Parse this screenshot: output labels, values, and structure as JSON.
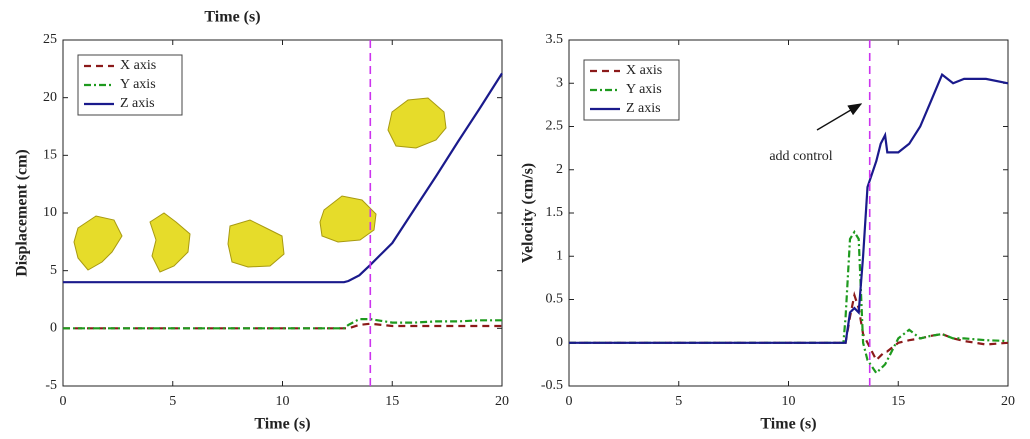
{
  "chart_data": [
    {
      "type": "line",
      "title": "Time (s)",
      "xlabel": "Time (s)",
      "ylabel": "Displacement (cm)",
      "x": [
        0,
        12.8,
        13,
        13.5,
        14,
        15,
        16,
        17,
        18,
        19,
        20
      ],
      "series": [
        {
          "name": "X axis",
          "color": "#8b1a1a",
          "dash": "dashed",
          "values": [
            0,
            0,
            0,
            0.3,
            0.4,
            0.2,
            0.2,
            0.2,
            0.2,
            0.2,
            0.2
          ]
        },
        {
          "name": "Y axis",
          "color": "#1e9a1e",
          "dash": "dashdot",
          "values": [
            0,
            0,
            0.3,
            0.8,
            0.8,
            0.5,
            0.5,
            0.6,
            0.6,
            0.7,
            0.7
          ]
        },
        {
          "name": "Z axis",
          "color": "#1a1a8c",
          "dash": "solid",
          "values": [
            4,
            4,
            4.1,
            4.6,
            5.5,
            7.4,
            10.3,
            13.2,
            16.2,
            19.1,
            22.1
          ]
        }
      ],
      "vline": 14,
      "vline_color": "#cc33ee",
      "xlim": [
        0,
        20
      ],
      "xticks": [
        0,
        5,
        10,
        15,
        20
      ],
      "ylim": [
        -5,
        25
      ],
      "yticks": [
        -5,
        0,
        5,
        10,
        15,
        20,
        25
      ],
      "legend": "upper left"
    },
    {
      "type": "line",
      "xlabel": "Time (s)",
      "ylabel": "Velocity (cm/s)",
      "annotation": "add control",
      "x": [
        0,
        12.5,
        12.6,
        12.8,
        13,
        13.2,
        13.4,
        13.6,
        14,
        14.2,
        14.4,
        14.5,
        15,
        15.5,
        16,
        16.5,
        17,
        17.5,
        18,
        19,
        20
      ],
      "series": [
        {
          "name": "X axis",
          "color": "#8b1a1a",
          "dash": "dashed",
          "values": [
            0,
            0,
            0,
            0.3,
            0.55,
            0.4,
            0.1,
            0,
            -0.2,
            -0.15,
            -0.1,
            -0.1,
            0,
            0.03,
            0.05,
            0.08,
            0.1,
            0.05,
            0.02,
            -0.02,
            0
          ]
        },
        {
          "name": "Y axis",
          "color": "#1e9a1e",
          "dash": "dashdot",
          "values": [
            0,
            0,
            0.3,
            1.2,
            1.28,
            1.2,
            0,
            -0.2,
            -0.35,
            -0.3,
            -0.25,
            -0.2,
            0.05,
            0.15,
            0.05,
            0.08,
            0.1,
            0.05,
            0.05,
            0.03,
            0.02
          ]
        },
        {
          "name": "Z axis",
          "color": "#1a1a8c",
          "dash": "solid",
          "values": [
            0,
            0,
            0,
            0.35,
            0.4,
            0.35,
            1.0,
            1.8,
            2.1,
            2.3,
            2.4,
            2.2,
            2.2,
            2.3,
            2.5,
            2.8,
            3.1,
            3.0,
            3.05,
            3.05,
            3.0
          ]
        }
      ],
      "vline": 13.7,
      "vline_color": "#cc33ee",
      "xlim": [
        0,
        20
      ],
      "xticks": [
        0,
        5,
        10,
        15,
        20
      ],
      "ylim": [
        -0.5,
        3.5
      ],
      "yticks": [
        -0.5,
        0,
        0.5,
        1,
        1.5,
        2,
        2.5,
        3,
        3.5
      ],
      "legend": "upper left"
    }
  ]
}
